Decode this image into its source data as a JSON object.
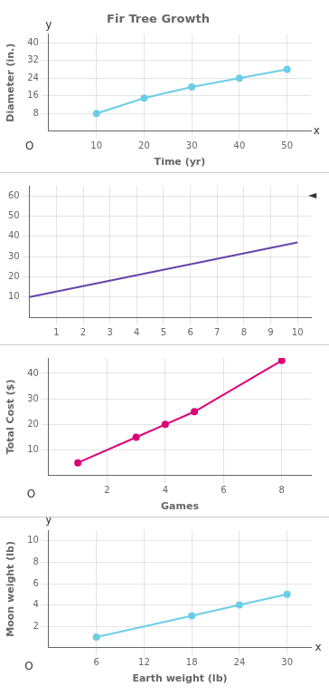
{
  "chart_data": [
    {
      "type": "line",
      "title": "Fir Tree Growth",
      "xlabel": "Time (yr)",
      "ylabel": "Diameter (in.)",
      "x": [
        10,
        20,
        30,
        40,
        50
      ],
      "values": [
        8,
        15,
        20,
        24,
        28
      ],
      "color": "#6dcde8",
      "marker": "circle",
      "xlim": [
        0,
        55
      ],
      "ylim": [
        0,
        44
      ],
      "xticks": [
        10,
        20,
        30,
        40,
        50
      ],
      "yticks": [
        8,
        16,
        24,
        32,
        40
      ],
      "grid": true,
      "annotations": [
        {
          "text": "y",
          "x": 0,
          "y": 45.5
        },
        {
          "text": "x",
          "x": 55.5,
          "y": 0
        },
        {
          "text": "O",
          "x": -4,
          "y": -4.5
        }
      ]
    },
    {
      "type": "line",
      "x": [
        0,
        10
      ],
      "values": [
        10,
        37
      ],
      "color": "#6644aa",
      "marker": "none",
      "xlim": [
        0,
        10.5
      ],
      "ylim": [
        0,
        65
      ],
      "xticks": [
        1,
        2,
        3,
        4,
        5,
        6,
        7,
        8,
        9,
        10
      ],
      "yticks": [
        10,
        20,
        30,
        40,
        50,
        60
      ],
      "grid": true,
      "annotations": [
        {
          "text": "◄",
          "x": 10.4,
          "y": 60
        }
      ]
    },
    {
      "type": "line",
      "xlabel": "Games",
      "ylabel": "Total Cost ($)",
      "x": [
        1,
        3,
        4,
        5,
        8
      ],
      "values": [
        5,
        15,
        20,
        25,
        45
      ],
      "color": "#dd0077",
      "marker": "circle",
      "xlim": [
        0,
        9
      ],
      "ylim": [
        0,
        46
      ],
      "xticks": [
        2,
        4,
        6,
        8
      ],
      "yticks": [
        10,
        20,
        30,
        40
      ],
      "grid": true,
      "annotations": [
        {
          "text": "O",
          "x": -0.6,
          "y": -5.5
        }
      ]
    },
    {
      "type": "line",
      "xlabel": "Earth weight (lb)",
      "ylabel": "Moon weight (lb)",
      "x": [
        6,
        18,
        24,
        30
      ],
      "values": [
        1,
        3,
        4,
        5
      ],
      "color": "#6dcde8",
      "marker": "circle",
      "xlim": [
        0,
        33
      ],
      "ylim": [
        0,
        11
      ],
      "xticks": [
        6,
        12,
        18,
        24,
        30
      ],
      "yticks": [
        2,
        4,
        6,
        8,
        10
      ],
      "grid": true,
      "annotations": [
        {
          "text": "y",
          "x": 0,
          "y": 11.4
        },
        {
          "text": "x",
          "x": 33.5,
          "y": 0
        },
        {
          "text": "O",
          "x": -2.5,
          "y": -1.3
        }
      ]
    }
  ]
}
